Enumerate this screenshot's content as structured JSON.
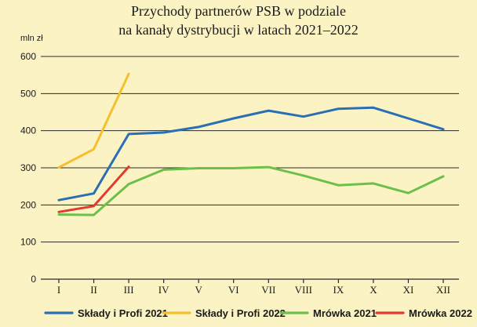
{
  "chart_data": {
    "type": "line",
    "title_line1": "Przychody partnerów PSB w podziale",
    "title_line2": "na kanały dystrybucji w latach 2021–2022",
    "ylabel": "mln zł",
    "xlabel": "",
    "ylim": [
      0,
      600
    ],
    "yticks": [
      0,
      100,
      200,
      300,
      400,
      500,
      600
    ],
    "categories": [
      "I",
      "II",
      "III",
      "IV",
      "V",
      "VI",
      "VII",
      "VIII",
      "IX",
      "X",
      "XI",
      "XII"
    ],
    "grid": "horizontal",
    "legend_position": "bottom",
    "series": [
      {
        "name": "Składy i Profi 2021",
        "color": "#2a6fb4",
        "values": [
          213,
          231,
          391,
          395,
          410,
          433,
          454,
          438,
          459,
          462,
          433,
          404
        ]
      },
      {
        "name": "Składy i Profi 2022",
        "color": "#f5bf2e",
        "values": [
          301,
          350,
          553,
          null,
          null,
          null,
          null,
          null,
          null,
          null,
          null,
          null
        ]
      },
      {
        "name": "Mrówka 2021",
        "color": "#6cc04a",
        "values": [
          174,
          173,
          256,
          295,
          299,
          299,
          302,
          279,
          253,
          258,
          232,
          277
        ]
      },
      {
        "name": "Mrówka 2022",
        "color": "#e23a2e",
        "values": [
          181,
          197,
          303,
          null,
          null,
          null,
          null,
          null,
          null,
          null,
          null,
          null
        ]
      }
    ]
  }
}
